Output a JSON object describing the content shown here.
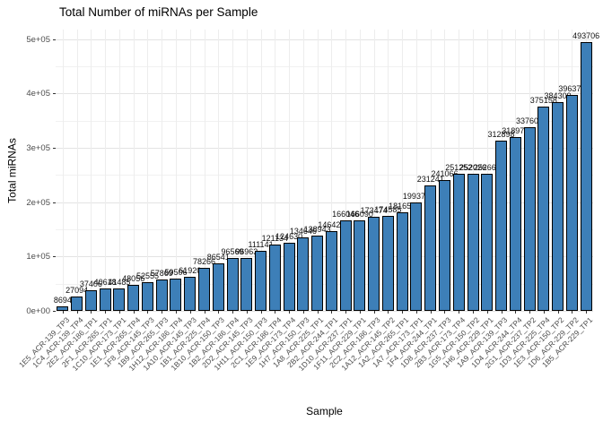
{
  "title": "Total Number of miRNAs per Sample",
  "chart_data": {
    "type": "bar",
    "title": "Total Number of miRNAs per Sample",
    "xlabel": "Sample",
    "ylabel": "Total miRNAs",
    "legend": "none",
    "grid": "on",
    "ylim": [
      0,
      517300
    ],
    "bar_fill": "#3d7fb8",
    "bar_stroke": "#000000",
    "yticks": {
      "values": [
        0,
        100000,
        200000,
        300000,
        400000,
        500000
      ],
      "labels": [
        "0e+00",
        "1e+05",
        "2e+05",
        "3e+05",
        "4e+05",
        "5e+05"
      ],
      "minor_values": [
        50000,
        150000,
        250000,
        350000,
        450000
      ]
    },
    "categories": [
      "1E5_ACR-139_TP3",
      "1C4_ACR-139_TP4",
      "2E2_ACR-186_TP1",
      "2F1_ACR-265_TP1",
      "1C10_ACR-173_TP1",
      "1E1_ACR-265_TP4",
      "1F8_ACR-145_TP3",
      "1B9_ACR-265_TP3",
      "1H12_ACR-186_TP4",
      "1A10_ACR-145_TP3",
      "1B1_ACR-225_TP4",
      "1B10_ACR-150_TP3",
      "1B2_ACR-186_TP4",
      "2D2_ACR-145_TP3",
      "1H11_ACR-150_TP3",
      "2C1_ACR-186_TP4",
      "1E9_ACR-173_TP4",
      "1H7_ACR-150_TP3",
      "1A8_ACR-225_TP1",
      "2B2_ACR-244_TP1",
      "1D10_ACR-237_TP1",
      "1F11_ACR-229_TP1",
      "2C2_ACR-186_TP3",
      "1A12_ACR-145_TP2",
      "1A2_ACR-265_TP1",
      "1A7_ACR-173_TP1",
      "1F4_ACR-244_TP1",
      "1D8_ACR-237_TP3",
      "2B3_ACR-173_TP4",
      "1G5_ACR-150_TP2",
      "1H6_ACR-229_TP1",
      "1A9_ACR-139_TP3",
      "1D4_ACR-244_TP4",
      "2G1_ACR-237_TP2",
      "1D3_ACR-225_TP4",
      "1E3_ACR-150_TP2",
      "1D6_ACR-229_TP2",
      "1B5_ACR-229_TP1"
    ],
    "values": [
      8694,
      27094,
      37406,
      40618,
      41485,
      48056,
      52555,
      57869,
      59506,
      61920,
      78266,
      86541,
      96569,
      96963,
      111141,
      121134,
      124630,
      134646,
      138943,
      146423,
      166046,
      166090,
      173474,
      174585,
      181659,
      199374,
      231241,
      241066,
      251252,
      252026,
      252667,
      312898,
      318975,
      337602,
      375158,
      384309,
      396374,
      493706
    ],
    "bar_labels": [
      "8694",
      "27094",
      "37406",
      "40618",
      "41485",
      "48056",
      "52555",
      "57869",
      "59506",
      "61920",
      "78266",
      "86541",
      "96569",
      "96963",
      "111141",
      "121134",
      "124630",
      "134646",
      "138943",
      "146423",
      "166046",
      "166090",
      "173474",
      "174585",
      "181659",
      "199374",
      "231241",
      "241066",
      "251252",
      "252026",
      "252667",
      "312898",
      "318975",
      "337602",
      "375158",
      "384309",
      "396374",
      "493706"
    ]
  }
}
